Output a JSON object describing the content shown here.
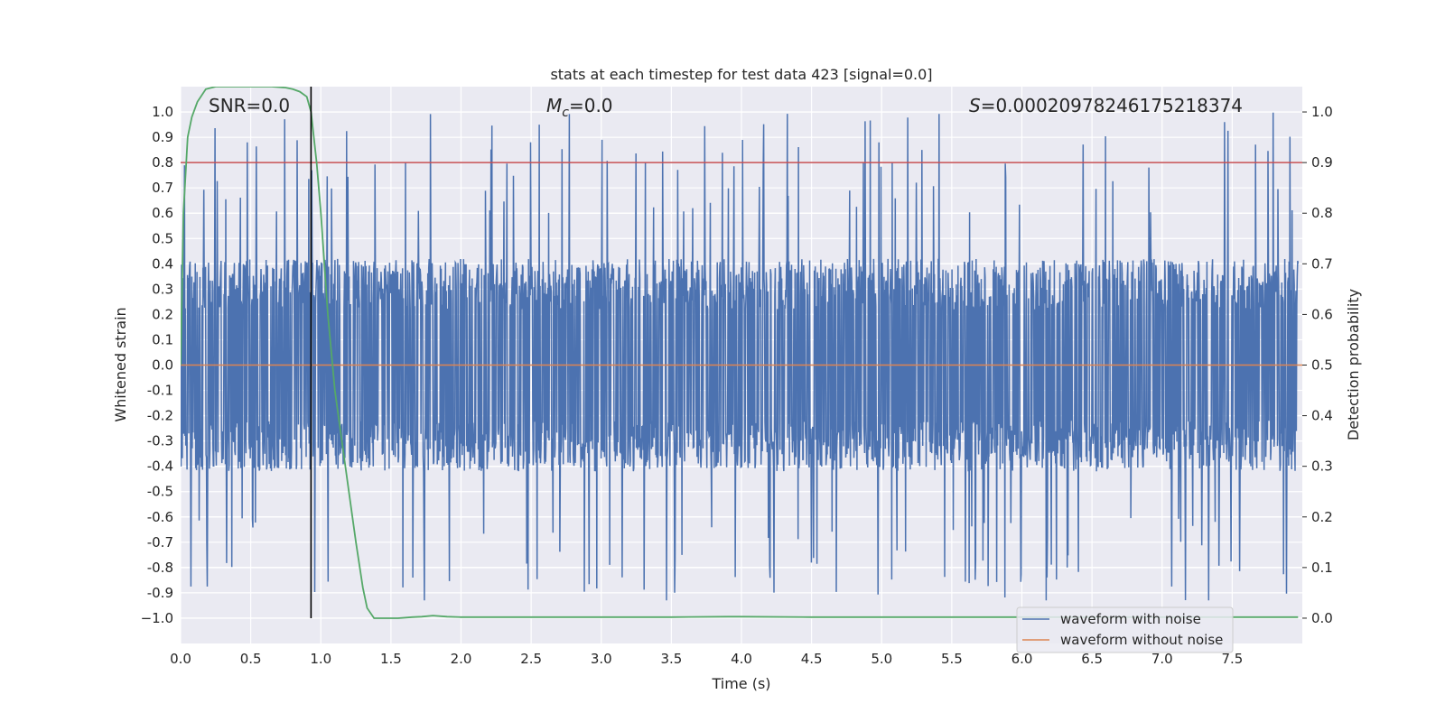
{
  "chart_data": {
    "type": "line",
    "title": "stats at each timestep for test data 423 [signal=0.0]",
    "xlabel": "Time (s)",
    "ylabel": "Whitened strain",
    "y2label": "Detection probability",
    "xlim": [
      0.0,
      8.0
    ],
    "ylim": [
      -1.1,
      1.1
    ],
    "y2lim": [
      -0.05,
      1.05
    ],
    "x_ticks": [
      "0.0",
      "0.5",
      "1.0",
      "1.5",
      "2.0",
      "2.5",
      "3.0",
      "3.5",
      "4.0",
      "4.5",
      "5.0",
      "5.5",
      "6.0",
      "6.5",
      "7.0",
      "7.5"
    ],
    "y_ticks": [
      "1.0",
      "0.9",
      "0.8",
      "0.7",
      "0.6",
      "0.5",
      "0.4",
      "0.3",
      "0.2",
      "0.1",
      "0.0",
      "-0.1",
      "-0.2",
      "-0.3",
      "-0.4",
      "-0.5",
      "-0.6",
      "-0.7",
      "-0.8",
      "-0.9",
      "−1.0"
    ],
    "y2_ticks": [
      "1.0",
      "0.9",
      "0.8",
      "0.7",
      "0.6",
      "0.5",
      "0.4",
      "0.3",
      "0.2",
      "0.1",
      "0.0"
    ],
    "annotations": {
      "snr": "SNR=0.0",
      "mc_symbol": "M",
      "mc_sub": "c",
      "mc_value": "=0.0",
      "s_symbol": "S",
      "s_value": "=0.00020978246175218374"
    },
    "legend": {
      "position": "lower-right",
      "entries": [
        "waveform with noise",
        "waveform without noise"
      ]
    },
    "threshold_detection_probability": 0.9,
    "marker_time_s": 0.93,
    "series": [
      {
        "name": "waveform with noise",
        "color": "#4c72b0",
        "kind": "noise",
        "amplitude_typical": 0.4,
        "max": 1.0,
        "min": -0.93
      },
      {
        "name": "waveform without noise",
        "color": "#dd8452",
        "x": [
          0.0,
          8.0
        ],
        "y": [
          0.0,
          0.0
        ]
      },
      {
        "name": "detection probability",
        "color": "#55a868",
        "axis": "right",
        "x": [
          0.0,
          0.02,
          0.05,
          0.08,
          0.12,
          0.18,
          0.25,
          0.35,
          0.5,
          0.65,
          0.75,
          0.8,
          0.85,
          0.9,
          0.93,
          0.97,
          1.0,
          1.05,
          1.1,
          1.15,
          1.2,
          1.25,
          1.3,
          1.33,
          1.38,
          1.45,
          1.55,
          1.65,
          1.72,
          1.8,
          1.9,
          2.0,
          2.5,
          3.0,
          3.5,
          3.9,
          4.0,
          4.5,
          5.0,
          5.5,
          6.0,
          6.5,
          7.0,
          7.5,
          7.97
        ],
        "y": [
          0.5,
          0.8,
          0.95,
          0.99,
          1.02,
          1.045,
          1.05,
          1.05,
          1.05,
          1.05,
          1.048,
          1.045,
          1.04,
          1.03,
          1.0,
          0.9,
          0.8,
          0.6,
          0.45,
          0.35,
          0.25,
          0.15,
          0.06,
          0.02,
          0.0,
          0.0,
          0.0,
          0.002,
          0.003,
          0.005,
          0.003,
          0.002,
          0.002,
          0.002,
          0.002,
          0.003,
          0.003,
          0.002,
          0.002,
          0.002,
          0.002,
          0.002,
          0.002,
          0.002,
          0.002
        ]
      },
      {
        "name": "threshold",
        "color": "#c44e52",
        "axis": "right",
        "x": [
          0.0,
          8.0
        ],
        "y": [
          0.9,
          0.9
        ]
      }
    ]
  }
}
